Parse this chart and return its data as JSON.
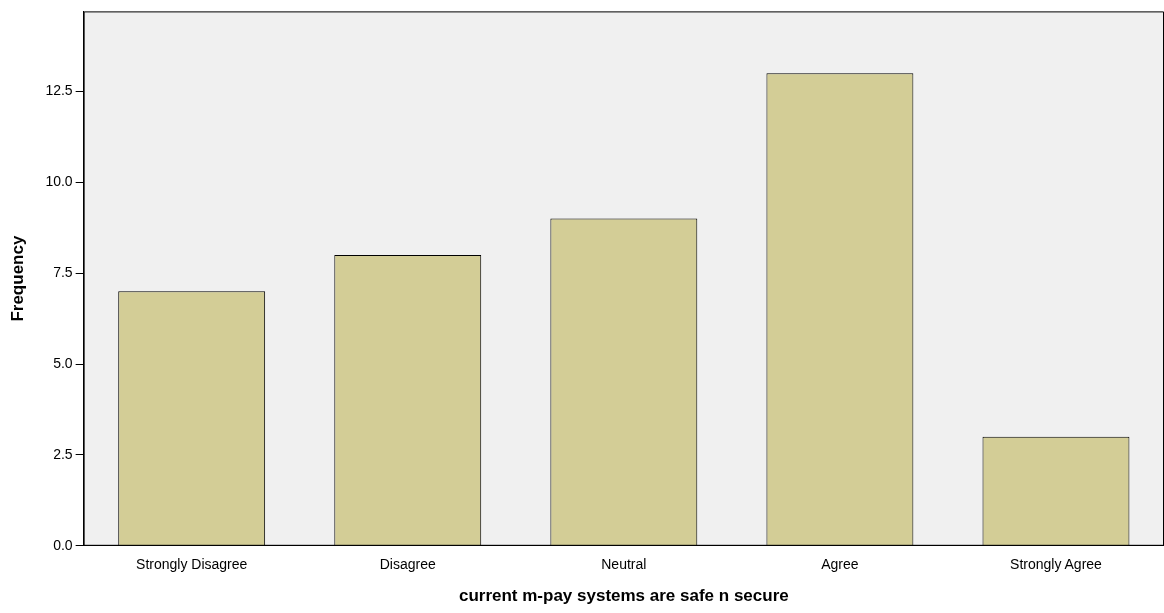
{
  "chart_data": {
    "type": "bar",
    "xlabel": "current m-pay systems are safe n secure",
    "ylabel": "Frequency",
    "categories": [
      "Strongly Disagree",
      "Disagree",
      "Neutral",
      "Agree",
      "Strongly Agree"
    ],
    "values": [
      7,
      8,
      9,
      13,
      3
    ],
    "color": "#d3cd96",
    "ylim": [
      0,
      14.7
    ],
    "yticks": [
      {
        "value": 0,
        "label": "0.0"
      },
      {
        "value": 2.5,
        "label": "2.5"
      },
      {
        "value": 5,
        "label": "5.0"
      },
      {
        "value": 7.5,
        "label": "7.5"
      },
      {
        "value": 10,
        "label": "10.0"
      },
      {
        "value": 12.5,
        "label": "12.5"
      }
    ],
    "grid": false,
    "legend": false
  }
}
